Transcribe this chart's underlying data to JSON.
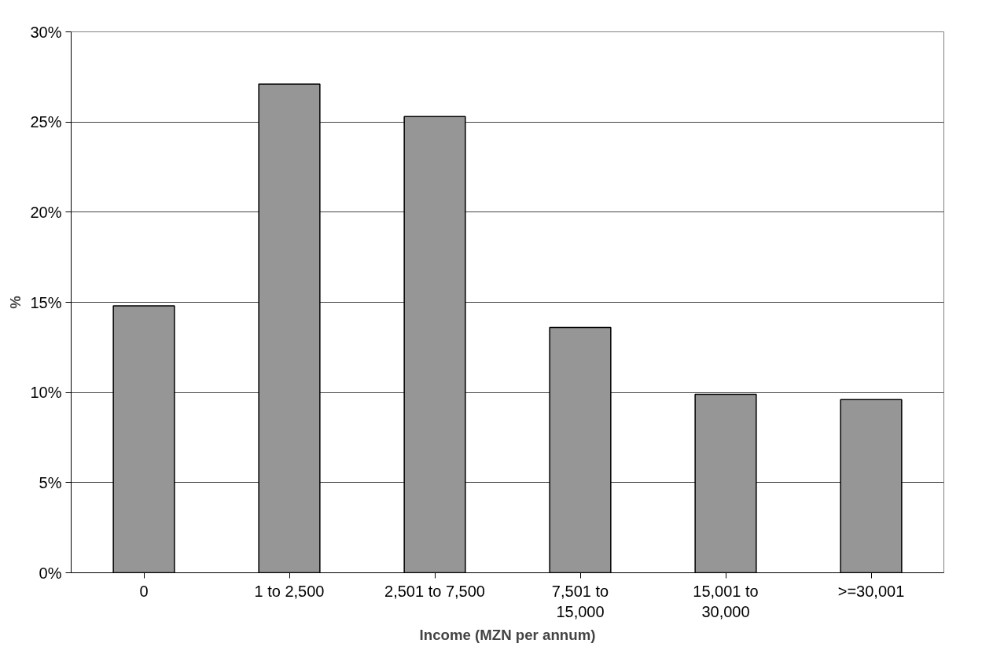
{
  "chart_data": {
    "type": "bar",
    "xlabel": "Income (MZN per annum)",
    "ylabel": "%",
    "categories": [
      "0",
      "1 to 2,500",
      "2,501 to 7,500",
      "7,501 to\n15,000",
      "15,001 to\n30,000",
      ">=30,001"
    ],
    "values": [
      14.8,
      27.1,
      25.3,
      13.6,
      9.9,
      9.6
    ],
    "color": "#969696",
    "ylim": [
      0,
      30
    ],
    "yticks": [
      {
        "value": 0,
        "label": "0%"
      },
      {
        "value": 5,
        "label": "5%"
      },
      {
        "value": 10,
        "label": "10%"
      },
      {
        "value": 15,
        "label": "15%"
      },
      {
        "value": 20,
        "label": "20%"
      },
      {
        "value": 25,
        "label": "25%"
      },
      {
        "value": 30,
        "label": "30%"
      }
    ],
    "grid": "y"
  }
}
